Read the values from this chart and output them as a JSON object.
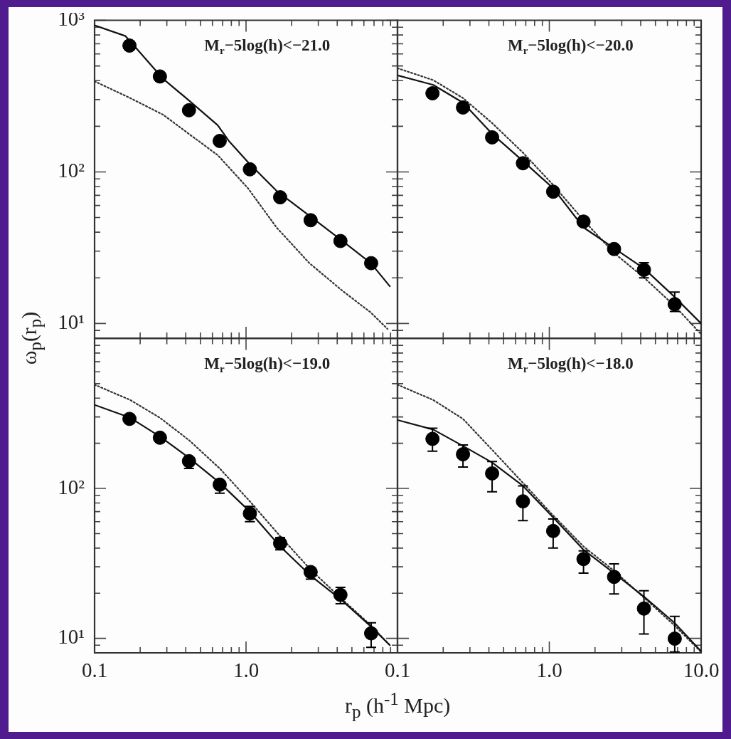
{
  "chart_data": [
    {
      "type": "scatter",
      "title": "M$_{r}$−5log(h)<−21.0",
      "ylabel": "ω$_{p}$(r$_{p}$)",
      "log": "xy",
      "xlim": [
        0.1,
        10
      ],
      "ylim": [
        8,
        1000
      ],
      "tick_labels": "y",
      "xticks": [
        {
          "value": 0.2,
          "label": null
        },
        {
          "value": 0.3,
          "label": null
        },
        {
          "value": 0.4,
          "label": null
        },
        {
          "value": 0.5,
          "label": null
        },
        {
          "value": 0.6,
          "label": null
        },
        {
          "value": 0.7,
          "label": null
        },
        {
          "value": 0.8,
          "label": null
        },
        {
          "value": 0.9,
          "label": null
        },
        {
          "value": 1,
          "label": null
        },
        {
          "value": 2,
          "label": null
        },
        {
          "value": 3,
          "label": null
        },
        {
          "value": 4,
          "label": null
        },
        {
          "value": 5,
          "label": null
        },
        {
          "value": 6,
          "label": null
        },
        {
          "value": 7,
          "label": null
        },
        {
          "value": 8,
          "label": null
        },
        {
          "value": 9,
          "label": null
        }
      ],
      "yticks": [
        {
          "value": 9,
          "label": null
        },
        {
          "value": 10,
          "label": "10¹"
        },
        {
          "value": 20,
          "label": null
        },
        {
          "value": 30,
          "label": null
        },
        {
          "value": 40,
          "label": null
        },
        {
          "value": 50,
          "label": null
        },
        {
          "value": 60,
          "label": null
        },
        {
          "value": 70,
          "label": null
        },
        {
          "value": 80,
          "label": null
        },
        {
          "value": 90,
          "label": null
        },
        {
          "value": 100,
          "label": "10²"
        },
        {
          "value": 200,
          "label": null
        },
        {
          "value": 300,
          "label": null
        },
        {
          "value": 400,
          "label": null
        },
        {
          "value": 500,
          "label": null
        },
        {
          "value": 600,
          "label": null
        },
        {
          "value": 700,
          "label": null
        },
        {
          "value": 800,
          "label": null
        },
        {
          "value": 900,
          "label": null
        },
        {
          "value": 1000,
          "label": "10³"
        }
      ],
      "series": [
        {
          "type": "line",
          "color": "#111111",
          "line_style": "solid",
          "marker": "none",
          "x": [
            0.1,
            0.16,
            0.185,
            0.284,
            0.42,
            0.65,
            0.77,
            1.03,
            1.59,
            2.72,
            4.34,
            6.67,
            8.9
          ],
          "values": [
            927,
            787,
            669,
            410,
            296,
            203,
            160,
            116,
            75,
            50,
            35,
            25,
            17.6
          ]
        },
        {
          "type": "line",
          "color": "#333333",
          "line_style": "dotted",
          "marker": "none",
          "x": [
            0.1,
            0.172,
            0.284,
            0.42,
            0.65,
            1.03,
            1.59,
            2.62,
            4.34,
            6.67,
            8.6
          ],
          "values": [
            396,
            307,
            238,
            178,
            129,
            78,
            43,
            25,
            16.4,
            11.8,
            9.2
          ]
        },
        {
          "type": "scatter",
          "color": "#000000",
          "marker": "circle",
          "x": [
            0.17,
            0.27,
            0.42,
            0.67,
            1.06,
            1.68,
            2.67,
            4.2,
            6.7
          ],
          "values": [
            681,
            426,
            255,
            160,
            104,
            68,
            48,
            35,
            25
          ]
        }
      ]
    },
    {
      "type": "scatter",
      "title": "M$_{r}$−5log(h)<−20.0",
      "log": "xy",
      "xlim": [
        0.1,
        10
      ],
      "ylim": [
        8,
        1000
      ],
      "tick_labels": false,
      "xticks": [
        {
          "value": 0.2,
          "label": null
        },
        {
          "value": 0.3,
          "label": null
        },
        {
          "value": 0.4,
          "label": null
        },
        {
          "value": 0.5,
          "label": null
        },
        {
          "value": 0.6,
          "label": null
        },
        {
          "value": 0.7,
          "label": null
        },
        {
          "value": 0.8,
          "label": null
        },
        {
          "value": 0.9,
          "label": null
        },
        {
          "value": 1,
          "label": null
        },
        {
          "value": 2,
          "label": null
        },
        {
          "value": 3,
          "label": null
        },
        {
          "value": 4,
          "label": null
        },
        {
          "value": 5,
          "label": null
        },
        {
          "value": 6,
          "label": null
        },
        {
          "value": 7,
          "label": null
        },
        {
          "value": 8,
          "label": null
        },
        {
          "value": 9,
          "label": null
        }
      ],
      "yticks": [
        {
          "value": 9,
          "label": null
        },
        {
          "value": 10,
          "label": null
        },
        {
          "value": 20,
          "label": null
        },
        {
          "value": 30,
          "label": null
        },
        {
          "value": 40,
          "label": null
        },
        {
          "value": 50,
          "label": null
        },
        {
          "value": 60,
          "label": null
        },
        {
          "value": 70,
          "label": null
        },
        {
          "value": 80,
          "label": null
        },
        {
          "value": 90,
          "label": null
        },
        {
          "value": 100,
          "label": null
        },
        {
          "value": 200,
          "label": null
        },
        {
          "value": 300,
          "label": null
        },
        {
          "value": 400,
          "label": null
        },
        {
          "value": 500,
          "label": null
        },
        {
          "value": 600,
          "label": null
        },
        {
          "value": 700,
          "label": null
        },
        {
          "value": 800,
          "label": null
        },
        {
          "value": 900,
          "label": null
        }
      ],
      "series": [
        {
          "type": "line",
          "color": "#111111",
          "line_style": "solid",
          "marker": "none",
          "x": [
            0.1,
            0.172,
            0.27,
            0.42,
            0.67,
            1.06,
            1.68,
            2.67,
            4.22,
            6.67,
            10
          ],
          "values": [
            433,
            375,
            286,
            178,
            118,
            78,
            43,
            31.4,
            23,
            15,
            10
          ]
        },
        {
          "type": "line",
          "color": "#333333",
          "line_style": "dotted",
          "marker": "none",
          "x": [
            0.1,
            0.172,
            0.27,
            0.42,
            0.67,
            1.06,
            1.68,
            2.67,
            4.22,
            6.67,
            10
          ],
          "values": [
            483,
            403,
            307,
            210,
            134,
            82,
            48,
            29.2,
            20,
            13.1,
            8.5
          ]
        },
        {
          "type": "scatter",
          "color": "#000000",
          "marker": "circle",
          "x": [
            0.17,
            0.27,
            0.42,
            0.67,
            1.06,
            1.68,
            2.67,
            4.2,
            6.7
          ],
          "values": [
            330,
            266,
            169,
            114,
            74,
            47,
            31,
            22.6,
            13.4
          ],
          "errors": [
            null,
            null,
            null,
            null,
            null,
            null,
            null,
            [
              20,
              25.2
            ],
            [
              12,
              16.1
            ]
          ]
        }
      ]
    },
    {
      "type": "scatter",
      "title": "M$_{r}$−5log(h)<−19.0",
      "xlabel": "r$_{p}$ (h$^{-1}$ Mpc)",
      "log": "xy",
      "xlim": [
        0.1,
        10
      ],
      "ylim": [
        8,
        1000
      ],
      "xticks": [
        0.1,
        {
          "value": 0.2,
          "label": null
        },
        {
          "value": 0.3,
          "label": null
        },
        {
          "value": 0.4,
          "label": null
        },
        {
          "value": 0.5,
          "label": null
        },
        {
          "value": 0.6,
          "label": null
        },
        {
          "value": 0.7,
          "label": null
        },
        {
          "value": 0.8,
          "label": null
        },
        {
          "value": 0.9,
          "label": null
        },
        {
          "value": 1,
          "label": "1.0"
        },
        {
          "value": 2,
          "label": null
        },
        {
          "value": 3,
          "label": null
        },
        {
          "value": 4,
          "label": null
        },
        {
          "value": 5,
          "label": null
        },
        {
          "value": 6,
          "label": null
        },
        {
          "value": 7,
          "label": null
        },
        {
          "value": 8,
          "label": null
        },
        {
          "value": 9,
          "label": null
        }
      ],
      "yticks": [
        {
          "value": 9,
          "label": null
        },
        {
          "value": 10,
          "label": "10¹"
        },
        {
          "value": 20,
          "label": null
        },
        {
          "value": 30,
          "label": null
        },
        {
          "value": 40,
          "label": null
        },
        {
          "value": 50,
          "label": null
        },
        {
          "value": 60,
          "label": null
        },
        {
          "value": 70,
          "label": null
        },
        {
          "value": 80,
          "label": null
        },
        {
          "value": 90,
          "label": null
        },
        {
          "value": 100,
          "label": "10²"
        },
        {
          "value": 200,
          "label": null
        },
        {
          "value": 300,
          "label": null
        },
        {
          "value": 400,
          "label": null
        },
        {
          "value": 500,
          "label": null
        },
        {
          "value": 600,
          "label": null
        },
        {
          "value": 700,
          "label": null
        },
        {
          "value": 800,
          "label": null
        },
        {
          "value": 900,
          "label": null
        }
      ],
      "series": [
        {
          "type": "line",
          "color": "#111111",
          "line_style": "solid",
          "marker": "none",
          "x": [
            0.1,
            0.172,
            0.27,
            0.42,
            0.67,
            1.06,
            1.68,
            2.67,
            4.22,
            6.67,
            8.9
          ],
          "values": [
            361,
            296,
            222,
            160,
            109,
            70,
            41,
            26.2,
            18.2,
            12,
            9
          ]
        },
        {
          "type": "line",
          "color": "#333333",
          "line_style": "dotted",
          "marker": "none",
          "x": [
            0.1,
            0.172,
            0.27,
            0.42,
            0.67,
            1.06,
            1.68,
            2.67,
            4.22,
            6.67,
            8.9
          ],
          "values": [
            492,
            389,
            296,
            210,
            136,
            82,
            48,
            28.7,
            18.6,
            12.2,
            9
          ]
        },
        {
          "type": "scatter",
          "color": "#000000",
          "marker": "circle",
          "x": [
            0.17,
            0.27,
            0.42,
            0.67,
            1.06,
            1.68,
            2.67,
            4.2,
            6.7
          ],
          "values": [
            291,
            218,
            152,
            106,
            68,
            43,
            27.7,
            19.5,
            10.8
          ],
          "errors": [
            null,
            null,
            [
              136,
              152
            ],
            [
              93,
              106
            ],
            [
              60,
              76
            ],
            [
              39,
              47
            ],
            [
              24.8,
              27.7
            ],
            [
              17,
              21.9
            ],
            [
              8.7,
              12.7
            ]
          ]
        }
      ]
    },
    {
      "type": "scatter",
      "title": "M$_{r}$−5log(h)<−18.0",
      "log": "xy",
      "xlim": [
        0.1,
        10
      ],
      "ylim": [
        8,
        1000
      ],
      "tick_labels": "x",
      "xticks": [
        {
          "value": 0.1,
          "label": "0.1"
        },
        {
          "value": 0.2,
          "label": null
        },
        {
          "value": 0.3,
          "label": null
        },
        {
          "value": 0.4,
          "label": null
        },
        {
          "value": 0.5,
          "label": null
        },
        {
          "value": 0.6,
          "label": null
        },
        {
          "value": 0.7,
          "label": null
        },
        {
          "value": 0.8,
          "label": null
        },
        {
          "value": 0.9,
          "label": null
        },
        {
          "value": 1,
          "label": "1.0"
        },
        {
          "value": 2,
          "label": null
        },
        {
          "value": 3,
          "label": null
        },
        {
          "value": 4,
          "label": null
        },
        {
          "value": 5,
          "label": null
        },
        {
          "value": 6,
          "label": null
        },
        {
          "value": 7,
          "label": null
        },
        {
          "value": 8,
          "label": null
        },
        {
          "value": 9,
          "label": null
        },
        {
          "value": 10,
          "label": "10.0"
        }
      ],
      "yticks": [
        {
          "value": 9,
          "label": null
        },
        {
          "value": 10,
          "label": null
        },
        {
          "value": 20,
          "label": null
        },
        {
          "value": 30,
          "label": null
        },
        {
          "value": 40,
          "label": null
        },
        {
          "value": 50,
          "label": null
        },
        {
          "value": 60,
          "label": null
        },
        {
          "value": 70,
          "label": null
        },
        {
          "value": 80,
          "label": null
        },
        {
          "value": 90,
          "label": null
        },
        {
          "value": 100,
          "label": null
        },
        {
          "value": 200,
          "label": null
        },
        {
          "value": 300,
          "label": null
        },
        {
          "value": 400,
          "label": null
        },
        {
          "value": 500,
          "label": null
        },
        {
          "value": 600,
          "label": null
        },
        {
          "value": 700,
          "label": null
        },
        {
          "value": 800,
          "label": null
        },
        {
          "value": 900,
          "label": null
        }
      ],
      "series": [
        {
          "type": "line",
          "color": "#111111",
          "line_style": "solid",
          "marker": "none",
          "x": [
            0.1,
            0.172,
            0.27,
            0.42,
            0.67,
            1.06,
            1.68,
            2.67,
            4.22,
            6.67,
            10
          ],
          "values": [
            286,
            247,
            192,
            149,
            104,
            64,
            39,
            27.2,
            18.9,
            12.7,
            8.2
          ]
        },
        {
          "type": "line",
          "color": "#333333",
          "line_style": "dotted",
          "marker": "none",
          "x": [
            0.1,
            0.172,
            0.27,
            0.42,
            0.67,
            1.06,
            1.68,
            2.67,
            4.22,
            6.67,
            10
          ],
          "values": [
            492,
            389,
            291,
            181,
            109,
            66,
            41,
            28.2,
            18.6,
            12.2,
            8.1
          ]
        },
        {
          "type": "scatter",
          "color": "#000000",
          "marker": "circle",
          "x": [
            0.17,
            0.27,
            0.42,
            0.67,
            1.06,
            1.68,
            2.67,
            4.2,
            6.7
          ],
          "values": [
            214,
            169,
            126,
            82,
            52,
            33.8,
            25.7,
            15.8,
            9.95
          ],
          "errors": [
            [
              177,
              252
            ],
            [
              139,
              195
            ],
            [
              95,
              151
            ],
            [
              61,
              104
            ],
            [
              40,
              62.5
            ],
            [
              27.2,
              38.3
            ],
            [
              19.8,
              31.4
            ],
            [
              10.7,
              20.8
            ],
            [
              8.1,
              14
            ]
          ]
        }
      ]
    }
  ]
}
